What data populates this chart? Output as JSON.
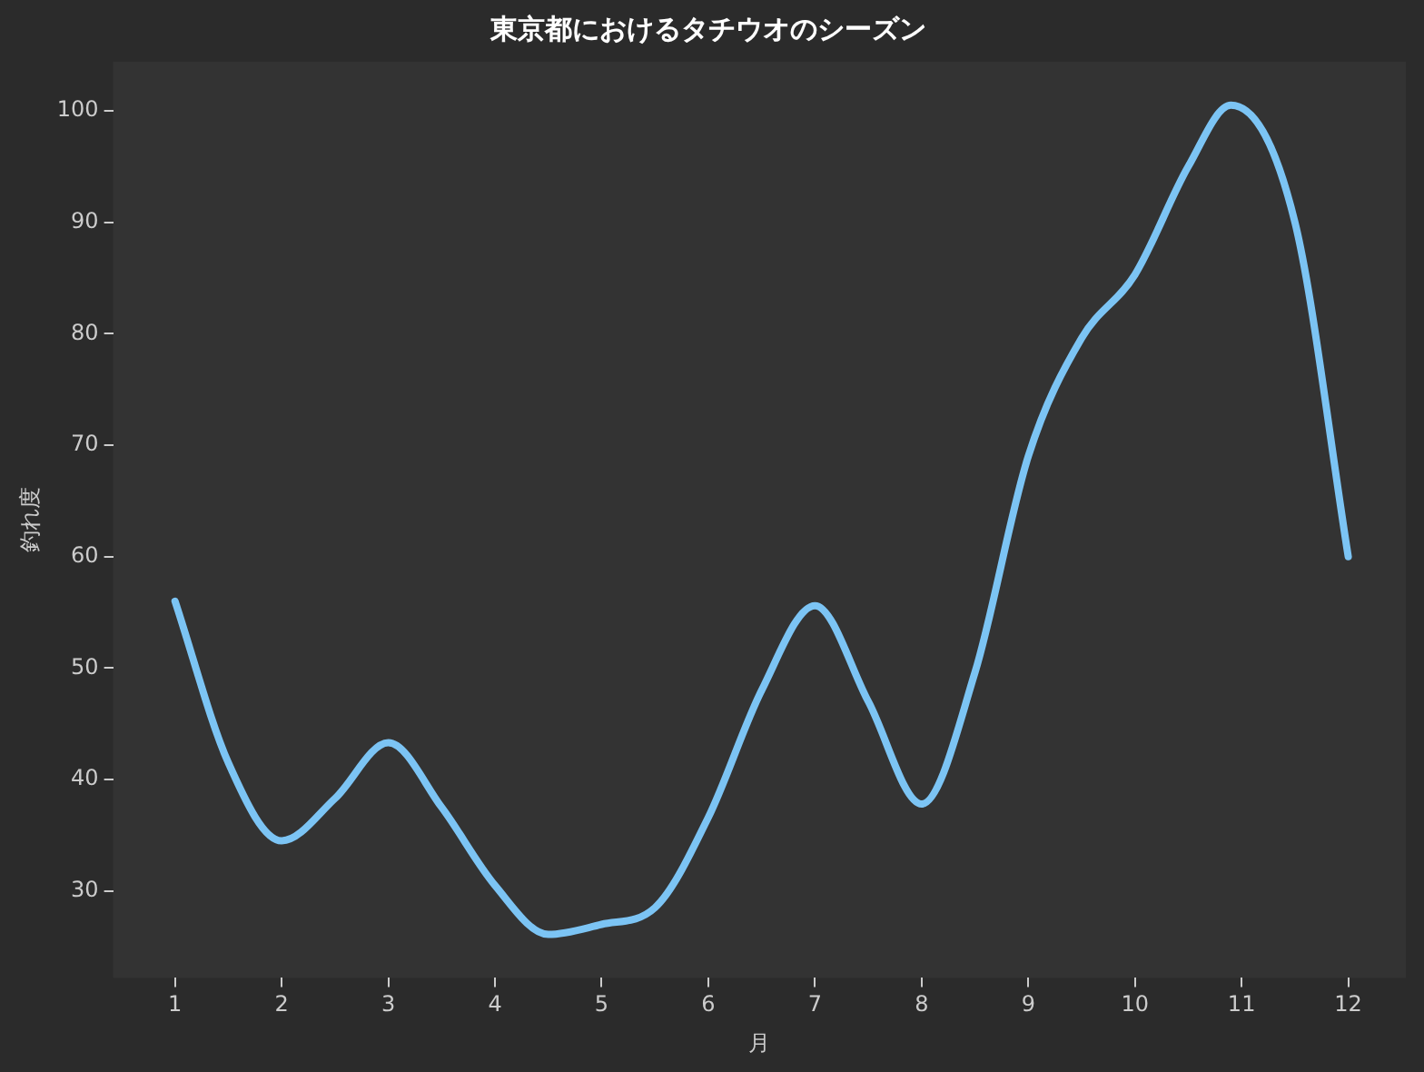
{
  "chart_data": {
    "type": "line",
    "title": "東京都におけるタチウオのシーズン",
    "xlabel": "月",
    "ylabel": "釣れ度",
    "series": [
      {
        "color": "#7cc4f4",
        "x": [
          1,
          1.5,
          2,
          2.5,
          3,
          3.5,
          4,
          4.5,
          5,
          5.5,
          6,
          6.5,
          7,
          7.5,
          8,
          8.5,
          9,
          9.5,
          10,
          10.5,
          10.9,
          11.5,
          12
        ],
        "values": [
          56,
          41.5,
          34.5,
          38.3,
          43.3,
          37.5,
          30.5,
          26.1,
          27,
          28.5,
          36.6,
          48,
          55.6,
          47,
          37.8,
          49.6,
          69,
          79.6,
          85.3,
          95,
          100.5,
          90,
          60
        ]
      }
    ],
    "xlim": [
      0.42,
      12.54
    ],
    "xticks": [
      1,
      2,
      3,
      4,
      5,
      6,
      7,
      8,
      9,
      10,
      11,
      12
    ],
    "ylim": [
      22.2,
      104.4
    ],
    "yticks": [
      30,
      40,
      50,
      60,
      70,
      80,
      90,
      100
    ],
    "grid": false,
    "legend": false,
    "marker": "none",
    "line_style": "solid"
  }
}
